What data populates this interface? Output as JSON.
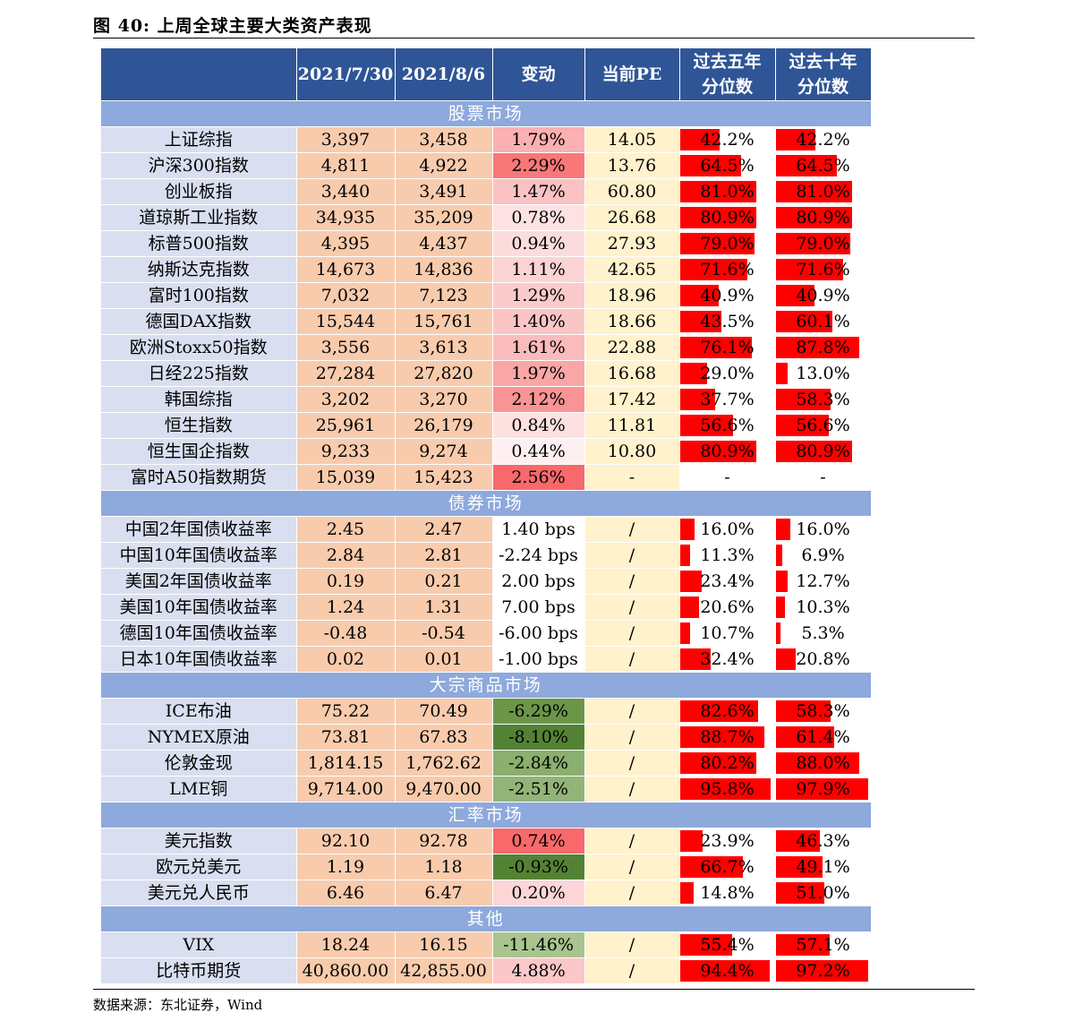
{
  "figure": {
    "title": "图 40: 上周全球主要大类资产表现",
    "source": "数据来源：东北证券，Wind"
  },
  "colors": {
    "header": "#2F5597",
    "section": "#8EA9DB",
    "name_cell": "#D9DFF0",
    "value_cell": "#F8CBAD",
    "pe_cell": "#FFF2CC",
    "bar": "#FF0000",
    "rise_dark": "#F8696B",
    "fall_dark": "#548235"
  },
  "table": {
    "headers": [
      "",
      "2021/7/30",
      "2021/8/6",
      "变动",
      "当前PE",
      "过去五年\n分位数",
      "过去十年\n分位数"
    ],
    "sections": [
      {
        "name": "股票市场",
        "rows": [
          {
            "name": "上证综指",
            "v1": "3,397",
            "v2": "3,458",
            "chg": "1.79%",
            "chg_bg": "#FBB0B2",
            "chg_num": 1.79,
            "pe": "14.05",
            "p5": "42.2%",
            "p5v": 42.2,
            "p10": "42.2%",
            "p10v": 42.2
          },
          {
            "name": "沪深300指数",
            "v1": "4,811",
            "v2": "4,922",
            "chg": "2.29%",
            "chg_bg": "#F8787A",
            "chg_num": 2.29,
            "pe": "13.76",
            "p5": "64.5%",
            "p5v": 64.5,
            "p10": "64.5%",
            "p10v": 64.5
          },
          {
            "name": "创业板指",
            "v1": "3,440",
            "v2": "3,491",
            "chg": "1.47%",
            "chg_bg": "#FBC2C3",
            "chg_num": 1.47,
            "pe": "60.80",
            "p5": "81.0%",
            "p5v": 81.0,
            "p10": "81.0%",
            "p10v": 81.0
          },
          {
            "name": "道琼斯工业指数",
            "v1": "34,935",
            "v2": "35,209",
            "chg": "0.78%",
            "chg_bg": "#FDE2E3",
            "chg_num": 0.78,
            "pe": "26.68",
            "p5": "80.9%",
            "p5v": 80.9,
            "p10": "80.9%",
            "p10v": 80.9
          },
          {
            "name": "标普500指数",
            "v1": "4,395",
            "v2": "4,437",
            "chg": "0.94%",
            "chg_bg": "#FCDBDC",
            "chg_num": 0.94,
            "pe": "27.93",
            "p5": "79.0%",
            "p5v": 79.0,
            "p10": "79.0%",
            "p10v": 79.0
          },
          {
            "name": "纳斯达克指数",
            "v1": "14,673",
            "v2": "14,836",
            "chg": "1.11%",
            "chg_bg": "#FCD3D4",
            "chg_num": 1.11,
            "pe": "42.65",
            "p5": "71.6%",
            "p5v": 71.6,
            "p10": "71.6%",
            "p10v": 71.6
          },
          {
            "name": "富时100指数",
            "v1": "7,032",
            "v2": "7,123",
            "chg": "1.29%",
            "chg_bg": "#FBCACB",
            "chg_num": 1.29,
            "pe": "18.96",
            "p5": "40.9%",
            "p5v": 40.9,
            "p10": "40.9%",
            "p10v": 40.9
          },
          {
            "name": "德国DAX指数",
            "v1": "15,544",
            "v2": "15,761",
            "chg": "1.40%",
            "chg_bg": "#FBC5C6",
            "chg_num": 1.4,
            "pe": "18.66",
            "p5": "43.5%",
            "p5v": 43.5,
            "p10": "60.1%",
            "p10v": 60.1
          },
          {
            "name": "欧洲Stoxx50指数",
            "v1": "3,556",
            "v2": "3,613",
            "chg": "1.61%",
            "chg_bg": "#FABBBC",
            "chg_num": 1.61,
            "pe": "22.88",
            "p5": "76.1%",
            "p5v": 76.1,
            "p10": "87.8%",
            "p10v": 87.8
          },
          {
            "name": "日经225指数",
            "v1": "27,284",
            "v2": "27,820",
            "chg": "1.97%",
            "chg_bg": "#F9A6A7",
            "chg_num": 1.97,
            "pe": "16.68",
            "p5": "29.0%",
            "p5v": 29.0,
            "p10": "13.0%",
            "p10v": 13.0
          },
          {
            "name": "韩国综指",
            "v1": "3,202",
            "v2": "3,270",
            "chg": "2.12%",
            "chg_bg": "#F99394",
            "chg_num": 2.12,
            "pe": "17.42",
            "p5": "37.7%",
            "p5v": 37.7,
            "p10": "58.3%",
            "p10v": 58.3
          },
          {
            "name": "恒生指数",
            "v1": "25,961",
            "v2": "26,179",
            "chg": "0.84%",
            "chg_bg": "#FDE0E0",
            "chg_num": 0.84,
            "pe": "11.81",
            "p5": "56.6%",
            "p5v": 56.6,
            "p10": "56.6%",
            "p10v": 56.6
          },
          {
            "name": "恒生国企指数",
            "v1": "9,233",
            "v2": "9,274",
            "chg": "0.44%",
            "chg_bg": "#FEF0F0",
            "chg_num": 0.44,
            "pe": "10.80",
            "p5": "80.9%",
            "p5v": 80.9,
            "p10": "80.9%",
            "p10v": 80.9
          },
          {
            "name": "富时A50指数期货",
            "v1": "15,039",
            "v2": "15,423",
            "chg": "2.56%",
            "chg_bg": "#F8696B",
            "chg_num": 2.56,
            "pe": "-",
            "p5": "-",
            "p5v": 0,
            "p10": "-",
            "p10v": 0
          }
        ]
      },
      {
        "name": "债券市场",
        "rows": [
          {
            "name": "中国2年国债收益率",
            "v1": "2.45",
            "v2": "2.47",
            "chg": "1.40 bps",
            "chg_bg": "#FFFFFF",
            "pe": "/",
            "p5": "16.0%",
            "p5v": 16.0,
            "p10": "16.0%",
            "p10v": 16.0
          },
          {
            "name": "中国10年国债收益率",
            "v1": "2.84",
            "v2": "2.81",
            "chg": "-2.24 bps",
            "chg_bg": "#FFFFFF",
            "pe": "/",
            "p5": "11.3%",
            "p5v": 11.3,
            "p10": "6.9%",
            "p10v": 6.9
          },
          {
            "name": "美国2年国债收益率",
            "v1": "0.19",
            "v2": "0.21",
            "chg": "2.00 bps",
            "chg_bg": "#FFFFFF",
            "pe": "/",
            "p5": "23.4%",
            "p5v": 23.4,
            "p10": "12.7%",
            "p10v": 12.7
          },
          {
            "name": "美国10年国债收益率",
            "v1": "1.24",
            "v2": "1.31",
            "chg": "7.00 bps",
            "chg_bg": "#FFFFFF",
            "pe": "/",
            "p5": "20.6%",
            "p5v": 20.6,
            "p10": "10.3%",
            "p10v": 10.3
          },
          {
            "name": "德国10年国债收益率",
            "v1": "-0.48",
            "v2": "-0.54",
            "chg": "-6.00 bps",
            "chg_bg": "#FFFFFF",
            "pe": "/",
            "p5": "10.7%",
            "p5v": 10.7,
            "p10": "5.3%",
            "p10v": 5.3
          },
          {
            "name": "日本10年国债收益率",
            "v1": "0.02",
            "v2": "0.01",
            "chg": "-1.00 bps",
            "chg_bg": "#FFFFFF",
            "pe": "/",
            "p5": "32.4%",
            "p5v": 32.4,
            "p10": "20.8%",
            "p10v": 20.8
          }
        ]
      },
      {
        "name": "大宗商品市场",
        "rows": [
          {
            "name": "ICE布油",
            "v1": "75.22",
            "v2": "70.49",
            "chg": "-6.29%",
            "chg_bg": "#6B9648",
            "pe": "/",
            "p5": "82.6%",
            "p5v": 82.6,
            "p10": "58.3%",
            "p10v": 58.3
          },
          {
            "name": "NYMEX原油",
            "v1": "73.81",
            "v2": "67.83",
            "chg": "-8.10%",
            "chg_bg": "#548235",
            "pe": "/",
            "p5": "88.7%",
            "p5v": 88.7,
            "p10": "61.4%",
            "p10v": 61.4
          },
          {
            "name": "伦敦金现",
            "v1": "1,814.15",
            "v2": "1,762.62",
            "chg": "-2.84%",
            "chg_bg": "#8BAF6F",
            "pe": "/",
            "p5": "80.2%",
            "p5v": 80.2,
            "p10": "88.0%",
            "p10v": 88.0
          },
          {
            "name": "LME铜",
            "v1": "9,714.00",
            "v2": "9,470.00",
            "chg": "-2.51%",
            "chg_bg": "#93B478",
            "pe": "/",
            "p5": "95.8%",
            "p5v": 95.8,
            "p10": "97.9%",
            "p10v": 97.9
          }
        ]
      },
      {
        "name": "汇率市场",
        "rows": [
          {
            "name": "美元指数",
            "v1": "92.10",
            "v2": "92.78",
            "chg": "0.74%",
            "chg_bg": "#F8696B",
            "pe": "/",
            "p5": "23.9%",
            "p5v": 23.9,
            "p10": "46.3%",
            "p10v": 46.3
          },
          {
            "name": "欧元兑美元",
            "v1": "1.19",
            "v2": "1.18",
            "chg": "-0.93%",
            "chg_bg": "#548235",
            "pe": "/",
            "p5": "66.7%",
            "p5v": 66.7,
            "p10": "49.1%",
            "p10v": 49.1
          },
          {
            "name": "美元兑人民币",
            "v1": "6.46",
            "v2": "6.47",
            "chg": "0.20%",
            "chg_bg": "#FCD6D7",
            "pe": "/",
            "p5": "14.8%",
            "p5v": 14.8,
            "p10": "51.0%",
            "p10v": 51.0
          }
        ]
      },
      {
        "name": "其他",
        "rows": [
          {
            "name": "VIX",
            "v1": "18.24",
            "v2": "16.15",
            "chg": "-11.46%",
            "chg_bg": "#A9C48E",
            "pe": "/",
            "p5": "55.4%",
            "p5v": 55.4,
            "p10": "57.1%",
            "p10v": 57.1
          },
          {
            "name": "比特币期货",
            "v1": "40,860.00",
            "v2": "42,855.00",
            "chg": "4.88%",
            "chg_bg": "#FBC7C8",
            "pe": "/",
            "p5": "94.4%",
            "p5v": 94.4,
            "p10": "97.2%",
            "p10v": 97.2
          }
        ]
      }
    ]
  }
}
